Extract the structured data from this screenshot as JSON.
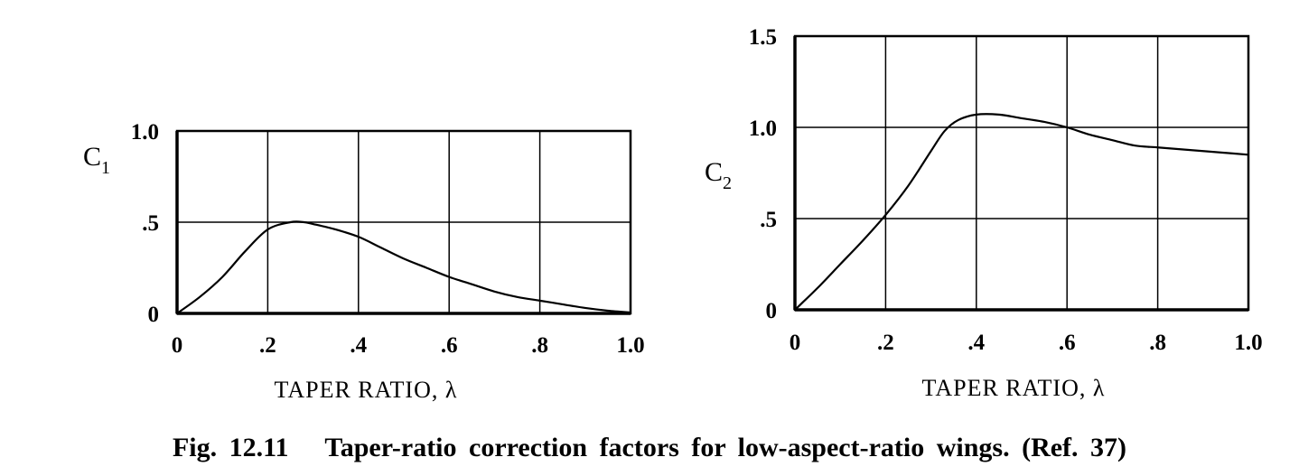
{
  "caption": "Fig. 12.11   Taper-ratio correction factors for low-aspect-ratio wings. (Ref. 37)",
  "chart_data": [
    {
      "type": "line",
      "ylabel_main": "C",
      "ylabel_sub": "1",
      "xlabel": "TAPER RATIO, λ",
      "xlim": [
        0,
        1.0
      ],
      "ylim": [
        0,
        1.0
      ],
      "grid": true,
      "x_ticks": [
        "0",
        ".2",
        ".4",
        ".6",
        ".8",
        "1.0"
      ],
      "y_ticks": [
        "0",
        ".5",
        "1.0"
      ],
      "series": [
        {
          "x": [
            0,
            0.05,
            0.1,
            0.15,
            0.2,
            0.25,
            0.28,
            0.3,
            0.35,
            0.4,
            0.45,
            0.5,
            0.55,
            0.6,
            0.65,
            0.7,
            0.75,
            0.8,
            0.85,
            0.9,
            0.95,
            1.0
          ],
          "y": [
            0,
            0.09,
            0.2,
            0.34,
            0.46,
            0.5,
            0.5,
            0.49,
            0.46,
            0.42,
            0.36,
            0.3,
            0.25,
            0.2,
            0.16,
            0.12,
            0.09,
            0.07,
            0.05,
            0.03,
            0.015,
            0.005
          ]
        }
      ]
    },
    {
      "type": "line",
      "ylabel_main": "C",
      "ylabel_sub": "2",
      "xlabel": "TAPER RATIO, λ",
      "xlim": [
        0,
        1.0
      ],
      "ylim": [
        0,
        1.5
      ],
      "grid": true,
      "x_ticks": [
        "0",
        ".2",
        ".4",
        ".6",
        ".8",
        "1.0"
      ],
      "y_ticks": [
        "0",
        ".5",
        "1.0",
        "1.5"
      ],
      "series": [
        {
          "x": [
            0,
            0.05,
            0.1,
            0.15,
            0.2,
            0.25,
            0.3,
            0.33,
            0.36,
            0.4,
            0.45,
            0.5,
            0.55,
            0.6,
            0.65,
            0.7,
            0.75,
            0.8,
            0.85,
            0.9,
            0.95,
            1.0
          ],
          "y": [
            0,
            0.12,
            0.25,
            0.38,
            0.52,
            0.68,
            0.87,
            0.98,
            1.04,
            1.07,
            1.07,
            1.05,
            1.03,
            1.0,
            0.96,
            0.93,
            0.9,
            0.89,
            0.88,
            0.87,
            0.86,
            0.85
          ]
        }
      ]
    }
  ]
}
